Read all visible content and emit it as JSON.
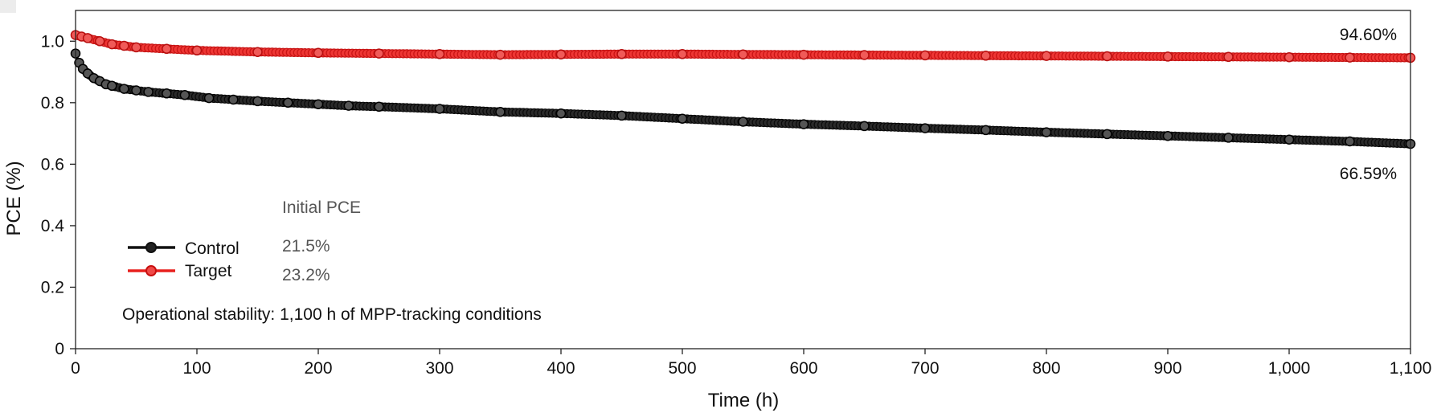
{
  "chart_data": {
    "type": "scatter",
    "title": "",
    "xlabel": "Time (h)",
    "ylabel": "PCE (%)",
    "xlim": [
      0,
      1100
    ],
    "ylim": [
      0,
      1.1
    ],
    "xticks": [
      0,
      100,
      200,
      300,
      400,
      500,
      600,
      700,
      800,
      900,
      1000,
      1100
    ],
    "xtick_labels": [
      "0",
      "100",
      "200",
      "300",
      "400",
      "500",
      "600",
      "700",
      "800",
      "900",
      "1,000",
      "1,100"
    ],
    "yticks": [
      0,
      0.2,
      0.4,
      0.6,
      0.8,
      1.0
    ],
    "ytick_labels": [
      "0",
      "0.2",
      "0.4",
      "0.6",
      "0.8",
      "1.0"
    ],
    "grid": false,
    "legend_position": "lower-left",
    "legend_header": "Initial PCE",
    "series": [
      {
        "name": "Control",
        "initial_pce": "21.5%",
        "end_label": "66.59%",
        "color": "#111111",
        "x": [
          0,
          3,
          6,
          10,
          15,
          20,
          25,
          30,
          40,
          50,
          60,
          75,
          90,
          110,
          130,
          150,
          175,
          200,
          225,
          250,
          300,
          350,
          400,
          450,
          500,
          550,
          600,
          650,
          700,
          750,
          800,
          850,
          900,
          950,
          1000,
          1050,
          1100
        ],
        "y": [
          0.96,
          0.93,
          0.91,
          0.895,
          0.88,
          0.87,
          0.86,
          0.855,
          0.845,
          0.84,
          0.835,
          0.83,
          0.825,
          0.815,
          0.81,
          0.805,
          0.8,
          0.795,
          0.79,
          0.787,
          0.78,
          0.77,
          0.765,
          0.758,
          0.748,
          0.738,
          0.73,
          0.724,
          0.717,
          0.711,
          0.704,
          0.698,
          0.692,
          0.686,
          0.68,
          0.674,
          0.666
        ]
      },
      {
        "name": "Target",
        "initial_pce": "23.2%",
        "end_label": "94.60%",
        "color": "#e8201e",
        "x": [
          0,
          5,
          10,
          20,
          30,
          40,
          50,
          75,
          100,
          150,
          200,
          250,
          300,
          350,
          400,
          450,
          500,
          550,
          600,
          650,
          700,
          750,
          800,
          850,
          900,
          950,
          1000,
          1050,
          1100
        ],
        "y": [
          1.02,
          1.015,
          1.01,
          1.0,
          0.99,
          0.985,
          0.98,
          0.975,
          0.97,
          0.965,
          0.962,
          0.96,
          0.958,
          0.956,
          0.957,
          0.958,
          0.958,
          0.957,
          0.956,
          0.955,
          0.954,
          0.953,
          0.952,
          0.951,
          0.95,
          0.949,
          0.948,
          0.947,
          0.946
        ]
      }
    ],
    "annotation": "Operational stability: 1,100 h of MPP-tracking conditions"
  }
}
